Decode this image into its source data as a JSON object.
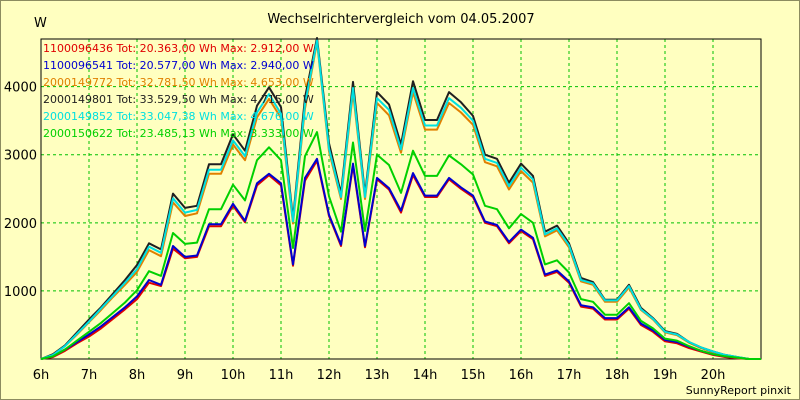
{
  "chart_data": {
    "type": "line",
    "title": "Wechselrichtervergleich vom 04.05.2007",
    "ylabel": "W",
    "footer": "SunnyReport pinxit",
    "x_ticks": [
      "6h",
      "7h",
      "8h",
      "9h",
      "10h",
      "11h",
      "12h",
      "13h",
      "14h",
      "15h",
      "16h",
      "17h",
      "18h",
      "19h",
      "20h"
    ],
    "y_ticks": [
      1000,
      2000,
      3000,
      4000
    ],
    "xlim": [
      6,
      21
    ],
    "ylim": [
      0,
      4700
    ],
    "grid": true,
    "legend_position": "top-left",
    "x": [
      6,
      6.25,
      6.5,
      6.75,
      7,
      7.25,
      7.5,
      7.75,
      8,
      8.25,
      8.5,
      8.75,
      9,
      9.25,
      9.5,
      9.75,
      10,
      10.25,
      10.5,
      10.75,
      11,
      11.25,
      11.5,
      11.75,
      12,
      12.25,
      12.5,
      12.75,
      13,
      13.25,
      13.5,
      13.75,
      14,
      14.25,
      14.5,
      14.75,
      15,
      15.25,
      15.5,
      15.75,
      16,
      16.25,
      16.5,
      16.75,
      17,
      17.25,
      17.5,
      17.75,
      18,
      18.25,
      18.5,
      18.75,
      19,
      19.25,
      19.5,
      19.75,
      20,
      20.25,
      20.5,
      20.75,
      21
    ],
    "series": [
      {
        "name": "1100096436",
        "legend": "1100096436 Tot: 20.363,00 Wh Max: 2.912,00 W",
        "color": "#e00000",
        "values": [
          0,
          30,
          120,
          230,
          330,
          450,
          590,
          730,
          880,
          1120,
          1070,
          1620,
          1480,
          1500,
          1950,
          1950,
          2250,
          2010,
          2550,
          2700,
          2550,
          1370,
          2620,
          2912,
          2100,
          1660,
          2840,
          1640,
          2640,
          2490,
          2150,
          2700,
          2380,
          2380,
          2640,
          2500,
          2380,
          2000,
          1950,
          1700,
          1880,
          1760,
          1220,
          1280,
          1120,
          770,
          740,
          580,
          580,
          740,
          500,
          400,
          260,
          230,
          160,
          110,
          60,
          30,
          10,
          0,
          0
        ]
      },
      {
        "name": "1100096541",
        "legend": "1100096541 Tot: 20.577,00 Wh Max: 2.940,00 W",
        "color": "#0000d0",
        "values": [
          0,
          40,
          140,
          250,
          360,
          480,
          620,
          760,
          920,
          1160,
          1090,
          1660,
          1500,
          1520,
          1980,
          1980,
          2280,
          2030,
          2580,
          2720,
          2580,
          1390,
          2660,
          2940,
          2120,
          1680,
          2870,
          1660,
          2660,
          2510,
          2180,
          2730,
          2400,
          2400,
          2660,
          2520,
          2400,
          2020,
          1970,
          1720,
          1900,
          1780,
          1240,
          1300,
          1140,
          790,
          760,
          600,
          600,
          760,
          520,
          420,
          280,
          250,
          180,
          120,
          70,
          40,
          20,
          0,
          0
        ]
      },
      {
        "name": "2000149772",
        "legend": "2000149772 Tot: 32.781,50 Wh Max: 4.653,00 W",
        "color": "#e08000",
        "values": [
          0,
          60,
          190,
          360,
          540,
          720,
          910,
          1090,
          1280,
          1600,
          1510,
          2300,
          2100,
          2140,
          2720,
          2720,
          3150,
          2920,
          3550,
          3820,
          3540,
          1990,
          3680,
          4653,
          3050,
          2350,
          3920,
          2350,
          3760,
          3580,
          3030,
          3920,
          3370,
          3370,
          3760,
          3620,
          3440,
          2890,
          2830,
          2490,
          2760,
          2590,
          1800,
          1890,
          1640,
          1140,
          1090,
          840,
          840,
          1050,
          720,
          580,
          390,
          350,
          240,
          160,
          100,
          50,
          20,
          0,
          0
        ]
      },
      {
        "name": "2000149801",
        "legend": "2000149801 Tot: 33.529,50 Wh Max: 4.715,00 W",
        "color": "#202020",
        "values": [
          0,
          70,
          200,
          390,
          580,
          760,
          960,
          1160,
          1380,
          1700,
          1610,
          2430,
          2220,
          2250,
          2860,
          2860,
          3300,
          3060,
          3720,
          3990,
          3700,
          2060,
          3840,
          4715,
          3170,
          2430,
          4070,
          2420,
          3920,
          3740,
          3150,
          4080,
          3510,
          3510,
          3920,
          3770,
          3570,
          3000,
          2940,
          2590,
          2870,
          2690,
          1870,
          1960,
          1700,
          1190,
          1130,
          870,
          870,
          1090,
          750,
          600,
          410,
          370,
          250,
          170,
          110,
          60,
          30,
          0,
          0
        ]
      },
      {
        "name": "2000149852",
        "legend": "2000149852 Tot: 33.047,38 Wh Max: 4.676,00 W",
        "color": "#00e0e0",
        "values": [
          0,
          60,
          190,
          370,
          550,
          740,
          930,
          1120,
          1320,
          1650,
          1560,
          2360,
          2150,
          2190,
          2780,
          2780,
          3210,
          2980,
          3620,
          3890,
          3600,
          2020,
          3740,
          4676,
          3090,
          2380,
          3980,
          2380,
          3830,
          3660,
          3080,
          3980,
          3430,
          3430,
          3830,
          3690,
          3500,
          2940,
          2880,
          2540,
          2810,
          2640,
          1830,
          1920,
          1670,
          1160,
          1110,
          860,
          860,
          1070,
          730,
          590,
          400,
          360,
          250,
          170,
          110,
          60,
          30,
          0,
          0
        ]
      },
      {
        "name": "2000150622",
        "legend": "2000150622 Tot: 23.485,13 Wh Max: 3.333,00 W",
        "color": "#00d000",
        "values": [
          0,
          40,
          140,
          270,
          400,
          530,
          680,
          830,
          1010,
          1290,
          1220,
          1850,
          1690,
          1710,
          2200,
          2200,
          2560,
          2330,
          2920,
          3110,
          2920,
          1630,
          2980,
          3333,
          2390,
          1870,
          3180,
          1880,
          3000,
          2850,
          2440,
          3060,
          2690,
          2690,
          2990,
          2860,
          2710,
          2250,
          2200,
          1920,
          2130,
          2000,
          1390,
          1450,
          1270,
          880,
          840,
          650,
          650,
          820,
          560,
          450,
          300,
          270,
          190,
          120,
          70,
          40,
          20,
          0,
          0
        ]
      }
    ]
  }
}
